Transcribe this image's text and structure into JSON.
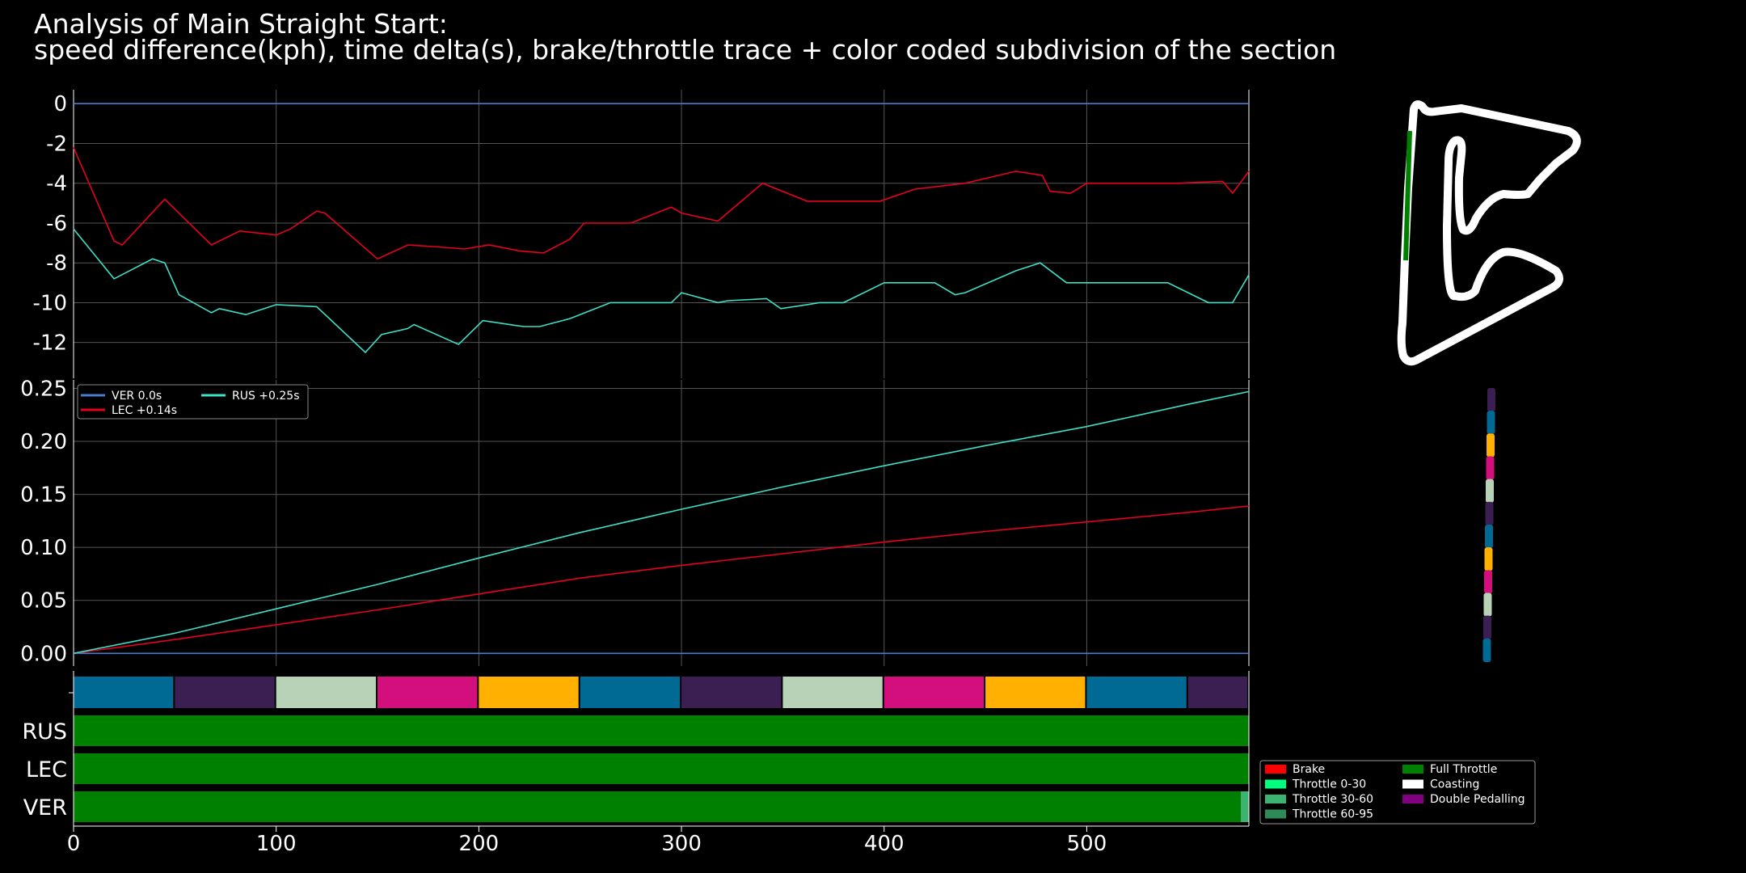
{
  "title": {
    "line1": "Analysis of Main Straight Start:",
    "line2": "speed difference(kph), time delta(s), brake/throttle trace + color coded subdivision of the section"
  },
  "colors": {
    "VER": "#4a7bd1",
    "LEC": "#e8001f",
    "RUS": "#3de0c8",
    "brake": "#ff0000",
    "throttle_0_30": "#00ff7f",
    "throttle_30_60": "#3cb371",
    "throttle_60_95": "#2e8b57",
    "full_throttle": "#008000",
    "coasting": "#ffffff",
    "double_pedalling": "#800080",
    "subdivisions": [
      "#006994",
      "#3b1f52",
      "#b8d2b8",
      "#d20f7c",
      "#ffb000"
    ]
  },
  "chart_data": [
    {
      "type": "line",
      "name": "speed-difference",
      "xlim": [
        0,
        580
      ],
      "ylim": [
        -13.8,
        0.7
      ],
      "yticks": [
        0,
        -2,
        -4,
        -6,
        -8,
        -10,
        -12
      ],
      "series": [
        {
          "name": "VER",
          "x": [
            0,
            580
          ],
          "y": [
            0,
            0
          ]
        },
        {
          "name": "LEC",
          "x": [
            0,
            20,
            24,
            45,
            68,
            82,
            100,
            107,
            120,
            124,
            150,
            165,
            180,
            193,
            205,
            220,
            232,
            245,
            252,
            275,
            295,
            300,
            318,
            340,
            362,
            378,
            398,
            415,
            440,
            465,
            478,
            482,
            492,
            500,
            545,
            567,
            572,
            580
          ],
          "y": [
            -2.2,
            -6.9,
            -7.1,
            -4.8,
            -7.1,
            -6.4,
            -6.6,
            -6.3,
            -5.4,
            -5.5,
            -7.8,
            -7.1,
            -7.2,
            -7.3,
            -7.1,
            -7.4,
            -7.5,
            -6.8,
            -6.0,
            -6.0,
            -5.2,
            -5.5,
            -5.9,
            -4.0,
            -4.9,
            -4.9,
            -4.9,
            -4.3,
            -4.0,
            -3.4,
            -3.6,
            -4.4,
            -4.5,
            -4.0,
            -4.0,
            -3.9,
            -4.5,
            -3.4
          ]
        },
        {
          "name": "RUS",
          "x": [
            0,
            20,
            39,
            45,
            52,
            68,
            72,
            85,
            100,
            120,
            144,
            152,
            165,
            168,
            190,
            202,
            222,
            230,
            245,
            265,
            280,
            295,
            300,
            318,
            323,
            342,
            349,
            362,
            368,
            380,
            400,
            425,
            435,
            440,
            465,
            477,
            490,
            540,
            560,
            572,
            580
          ],
          "y": [
            -6.3,
            -8.8,
            -7.8,
            -8.0,
            -9.6,
            -10.5,
            -10.3,
            -10.6,
            -10.1,
            -10.2,
            -12.5,
            -11.6,
            -11.3,
            -11.1,
            -12.1,
            -10.9,
            -11.2,
            -11.2,
            -10.8,
            -10.0,
            -10.0,
            -10.0,
            -9.5,
            -10.0,
            -9.9,
            -9.8,
            -10.3,
            -10.1,
            -10.0,
            -10.0,
            -9.0,
            -9.0,
            -9.6,
            -9.5,
            -8.4,
            -8.0,
            -9.0,
            -9.0,
            -10.0,
            -10.0,
            -8.6
          ]
        }
      ]
    },
    {
      "type": "line",
      "name": "time-delta",
      "xlim": [
        0,
        580
      ],
      "ylim": [
        -0.012,
        0.258
      ],
      "yticks": [
        "0.00",
        "0.05",
        "0.10",
        "0.15",
        "0.20",
        "0.25"
      ],
      "legend": {
        "placement": "top-left",
        "entries": [
          {
            "driver": "VER",
            "delta": "0.0s"
          },
          {
            "driver": "LEC",
            "delta": "+0.14s"
          },
          {
            "driver": "RUS",
            "delta": "+0.25s"
          }
        ]
      },
      "series": [
        {
          "name": "VER",
          "x": [
            0,
            580
          ],
          "y": [
            0,
            0
          ]
        },
        {
          "name": "LEC",
          "x": [
            0,
            50,
            100,
            150,
            200,
            250,
            300,
            350,
            400,
            450,
            500,
            550,
            580
          ],
          "y": [
            0,
            0.013,
            0.027,
            0.041,
            0.056,
            0.071,
            0.083,
            0.094,
            0.105,
            0.115,
            0.124,
            0.133,
            0.139
          ]
        },
        {
          "name": "RUS",
          "x": [
            0,
            50,
            100,
            150,
            200,
            250,
            300,
            350,
            400,
            450,
            500,
            550,
            580
          ],
          "y": [
            0,
            0.019,
            0.042,
            0.065,
            0.09,
            0.114,
            0.136,
            0.157,
            0.177,
            0.196,
            0.214,
            0.235,
            0.247
          ]
        }
      ]
    },
    {
      "type": "bar",
      "name": "throttle-trace",
      "xlim": [
        0,
        580
      ],
      "xticks": [
        0,
        100,
        200,
        300,
        400,
        500
      ],
      "rows": [
        {
          "name": "RUS",
          "segments": [
            {
              "from": 0,
              "to": 580,
              "state": "full_throttle"
            }
          ]
        },
        {
          "name": "LEC",
          "segments": [
            {
              "from": 0,
              "to": 580,
              "state": "full_throttle"
            }
          ]
        },
        {
          "name": "VER",
          "segments": [
            {
              "from": 0,
              "to": 576,
              "state": "full_throttle"
            },
            {
              "from": 576,
              "to": 580,
              "state": "throttle_30_60"
            }
          ]
        }
      ],
      "subdivisions": {
        "start": 0,
        "width": 50,
        "count": 12,
        "palette_order": [
          0,
          1,
          2,
          3,
          4
        ]
      }
    }
  ],
  "legend": {
    "items": [
      {
        "label": "Brake",
        "color_key": "brake"
      },
      {
        "label": "Throttle 0-30",
        "color_key": "throttle_0_30"
      },
      {
        "label": "Throttle 30-60",
        "color_key": "throttle_30_60"
      },
      {
        "label": "Throttle 60-95",
        "color_key": "throttle_60_95"
      },
      {
        "label": "Full Throttle",
        "color_key": "full_throttle"
      },
      {
        "label": "Coasting",
        "color_key": "coasting"
      },
      {
        "label": "Double Pedalling",
        "color_key": "double_pedalling"
      }
    ]
  }
}
